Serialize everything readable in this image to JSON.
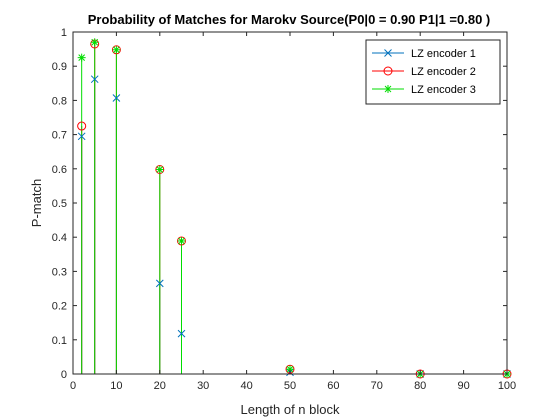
{
  "chart_data": {
    "type": "stem",
    "title": "Probability of Matches for Marokv Source(P0|0 = 0.90 P1|1 =0.80 )",
    "xlabel": "Length of n block",
    "ylabel": "P-match",
    "xlim": [
      0,
      100
    ],
    "ylim": [
      0,
      1
    ],
    "xticks": [
      0,
      10,
      20,
      30,
      40,
      50,
      60,
      70,
      80,
      90,
      100
    ],
    "yticks": [
      0,
      0.1,
      0.2,
      0.3,
      0.4,
      0.5,
      0.6,
      0.7,
      0.8,
      0.9,
      1
    ],
    "xtick_labels": [
      "0",
      "10",
      "20",
      "30",
      "40",
      "50",
      "60",
      "70",
      "80",
      "90",
      "100"
    ],
    "ytick_labels": [
      "0",
      "0.1",
      "0.2",
      "0.3",
      "0.4",
      "0.5",
      "0.6",
      "0.7",
      "0.8",
      "0.9",
      "1"
    ],
    "grid": false,
    "legend_position": "top-right",
    "x": [
      2,
      5,
      10,
      20,
      25,
      50,
      80,
      100
    ],
    "series": [
      {
        "name": "LZ encoder 1",
        "marker": "x",
        "color": "#0072BD",
        "values": [
          0.695,
          0.862,
          0.807,
          0.265,
          0.118,
          0.005,
          0.0,
          0.0
        ]
      },
      {
        "name": "LZ encoder 2",
        "marker": "o",
        "color": "#FF0000",
        "values": [
          0.725,
          0.965,
          0.948,
          0.598,
          0.389,
          0.014,
          0.0,
          0.0
        ]
      },
      {
        "name": "LZ encoder 3",
        "marker": "*",
        "color": "#00DD00",
        "values": [
          0.925,
          0.97,
          0.948,
          0.598,
          0.389,
          0.014,
          0.0,
          0.0
        ]
      }
    ]
  }
}
